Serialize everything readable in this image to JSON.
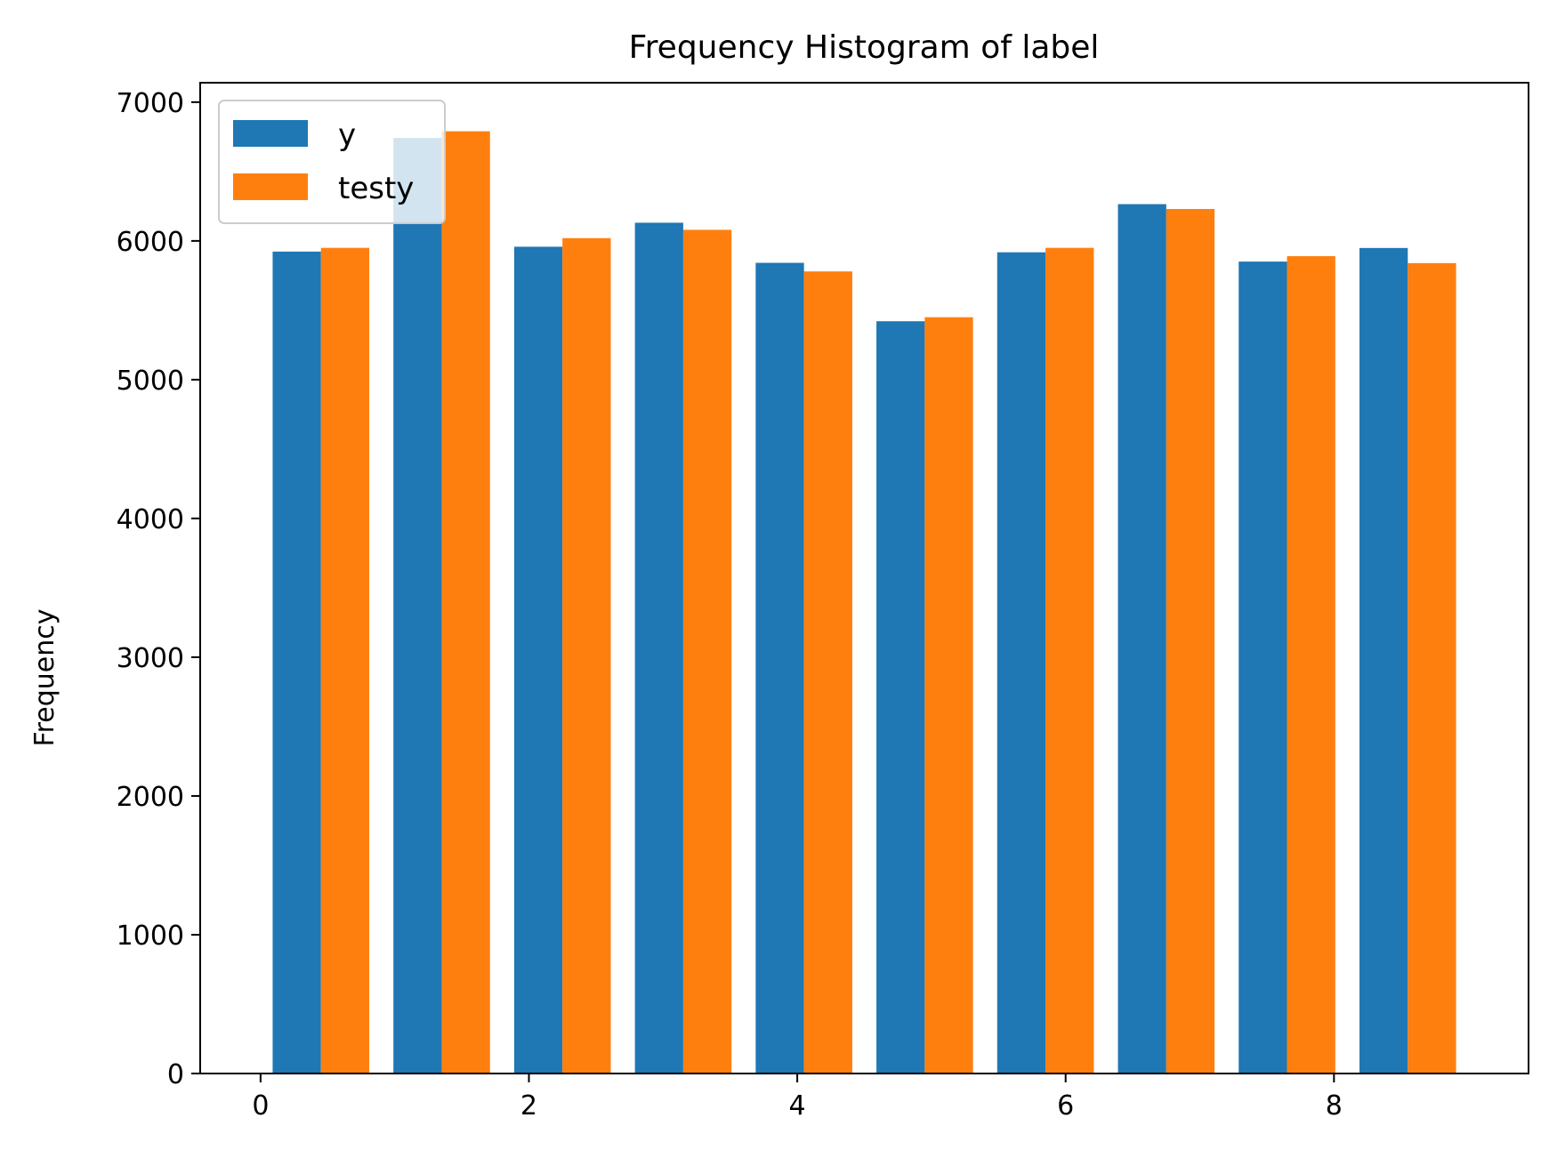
{
  "chart_data": {
    "type": "bar",
    "title": "Frequency Histogram of label",
    "xlabel": "",
    "ylabel": "Frequency",
    "xlim": [
      -0.45,
      9.45
    ],
    "ylim": [
      0,
      7140
    ],
    "xticks": [
      0,
      2,
      4,
      6,
      8
    ],
    "yticks": [
      0,
      1000,
      2000,
      3000,
      4000,
      5000,
      6000,
      7000
    ],
    "bin_edges": [
      0,
      0.9,
      1.8,
      2.7,
      3.6,
      4.5,
      5.4,
      6.3,
      7.2,
      8.1,
      9.0
    ],
    "series": [
      {
        "name": "y",
        "color": "#1f77b4",
        "values": [
          5923,
          6742,
          5958,
          6131,
          5842,
          5421,
          5918,
          6265,
          5851,
          5949
        ]
      },
      {
        "name": "testy",
        "color": "#ff7f0e",
        "values": [
          5950,
          6790,
          6020,
          6080,
          5780,
          5450,
          5950,
          6230,
          5890,
          5840
        ]
      }
    ],
    "legend": {
      "position": "top-left",
      "entries": [
        "y",
        "testy"
      ]
    },
    "grid": false
  }
}
